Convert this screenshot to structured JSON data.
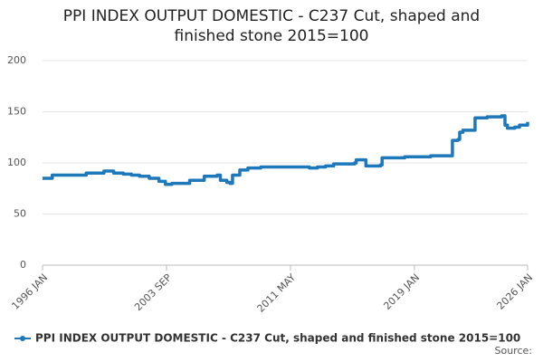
{
  "chart_data": {
    "type": "line",
    "title": "PPI INDEX OUTPUT DOMESTIC - C237 Cut, shaped and finished stone 2015=100",
    "x": [
      1996.0,
      1996.5,
      1996.6,
      1997.5,
      1998.5,
      1998.7,
      1999.5,
      1999.8,
      2000.4,
      2001.0,
      2001.5,
      2002.0,
      2002.6,
      2003.2,
      2003.6,
      2004.0,
      2004.6,
      2005.1,
      2005.5,
      2006.0,
      2006.8,
      2007.0,
      2007.4,
      2007.6,
      2007.75,
      2008.2,
      2008.7,
      2009.5,
      2010.5,
      2011.3,
      2012.0,
      2012.5,
      2013.0,
      2013.5,
      2014.0,
      2014.07,
      2015.3,
      2015.4,
      2015.9,
      2016.0,
      2016.9,
      2017.0,
      2018.3,
      2018.4,
      2020.0,
      2021.3,
      2021.35,
      2021.7,
      2021.8,
      2022.0,
      2022.7,
      2022.75,
      2023.5,
      2024.3,
      2024.4,
      2024.6,
      2024.75,
      2025.2,
      2025.5,
      2026.0
    ],
    "series": [
      {
        "name": "PPI INDEX OUTPUT DOMESTIC - C237 Cut, shaped and finished stone 2015=100",
        "color": "#1f78b9",
        "values": [
          85,
          85,
          88,
          88,
          88,
          90,
          90,
          92,
          90,
          89,
          88,
          87,
          85,
          82,
          79,
          80,
          80,
          83,
          83,
          87,
          88,
          83,
          81,
          80,
          88,
          93,
          95,
          96,
          96,
          96,
          96,
          95,
          96,
          97,
          99,
          99,
          100,
          103,
          103,
          97,
          98,
          105,
          105,
          106,
          107,
          107,
          122,
          123,
          130,
          132,
          132,
          144,
          145,
          145,
          146,
          137,
          134,
          135,
          137,
          140
        ]
      }
    ],
    "xlim": [
      1996,
      2026
    ],
    "xticks": [
      {
        "value": 1996,
        "label": "1996 JAN"
      },
      {
        "value": 2003.667,
        "label": "2003 SEP"
      },
      {
        "value": 2011.333,
        "label": "2011 MAY"
      },
      {
        "value": 2019,
        "label": "2019 JAN"
      },
      {
        "value": 2026,
        "label": "2026 JAN"
      }
    ],
    "ylim": [
      0,
      200
    ],
    "yticks": [
      0,
      50,
      100,
      150,
      200
    ],
    "grid": true,
    "source": "Source:"
  }
}
